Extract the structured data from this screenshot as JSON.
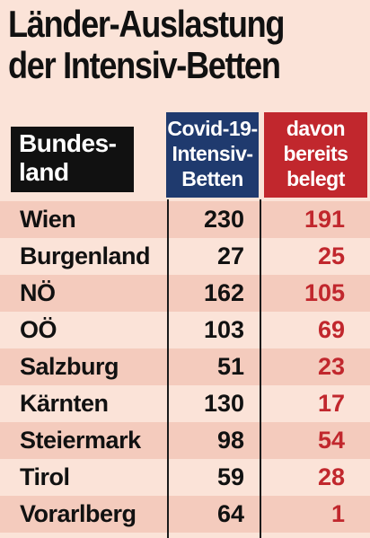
{
  "chart_data": {
    "type": "table",
    "title": "Länder-Auslastung der Intensiv-Betten",
    "title_lines": [
      "Länder-Auslastung",
      "der Intensiv-Betten"
    ],
    "columns": [
      {
        "lines": [
          "Bundes-",
          "land"
        ],
        "color": "#111111"
      },
      {
        "lines": [
          "Covid-19-",
          "Intensiv-",
          "Betten"
        ],
        "color": "#1f3a6e"
      },
      {
        "lines": [
          "davon",
          "bereits",
          "belegt"
        ],
        "color": "#c1272d"
      }
    ],
    "rows": [
      {
        "land": "Wien",
        "betten": "230",
        "belegt": "191"
      },
      {
        "land": "Burgenland",
        "betten": "27",
        "belegt": "25"
      },
      {
        "land": "NÖ",
        "betten": "162",
        "belegt": "105"
      },
      {
        "land": "OÖ",
        "betten": "103",
        "belegt": "69"
      },
      {
        "land": "Salzburg",
        "betten": "51",
        "belegt": "23"
      },
      {
        "land": "Kärnten",
        "betten": "130",
        "belegt": "17"
      },
      {
        "land": "Steiermark",
        "betten": "98",
        "belegt": "54"
      },
      {
        "land": "Tirol",
        "betten": "59",
        "belegt": "28"
      },
      {
        "land": "Vorarlberg",
        "betten": "64",
        "belegt": "1"
      }
    ],
    "colors": {
      "background": "#fbe3d8",
      "row_alt": "#f4cbbd",
      "covid_header": "#1f3a6e",
      "belegt": "#c1272d"
    }
  }
}
